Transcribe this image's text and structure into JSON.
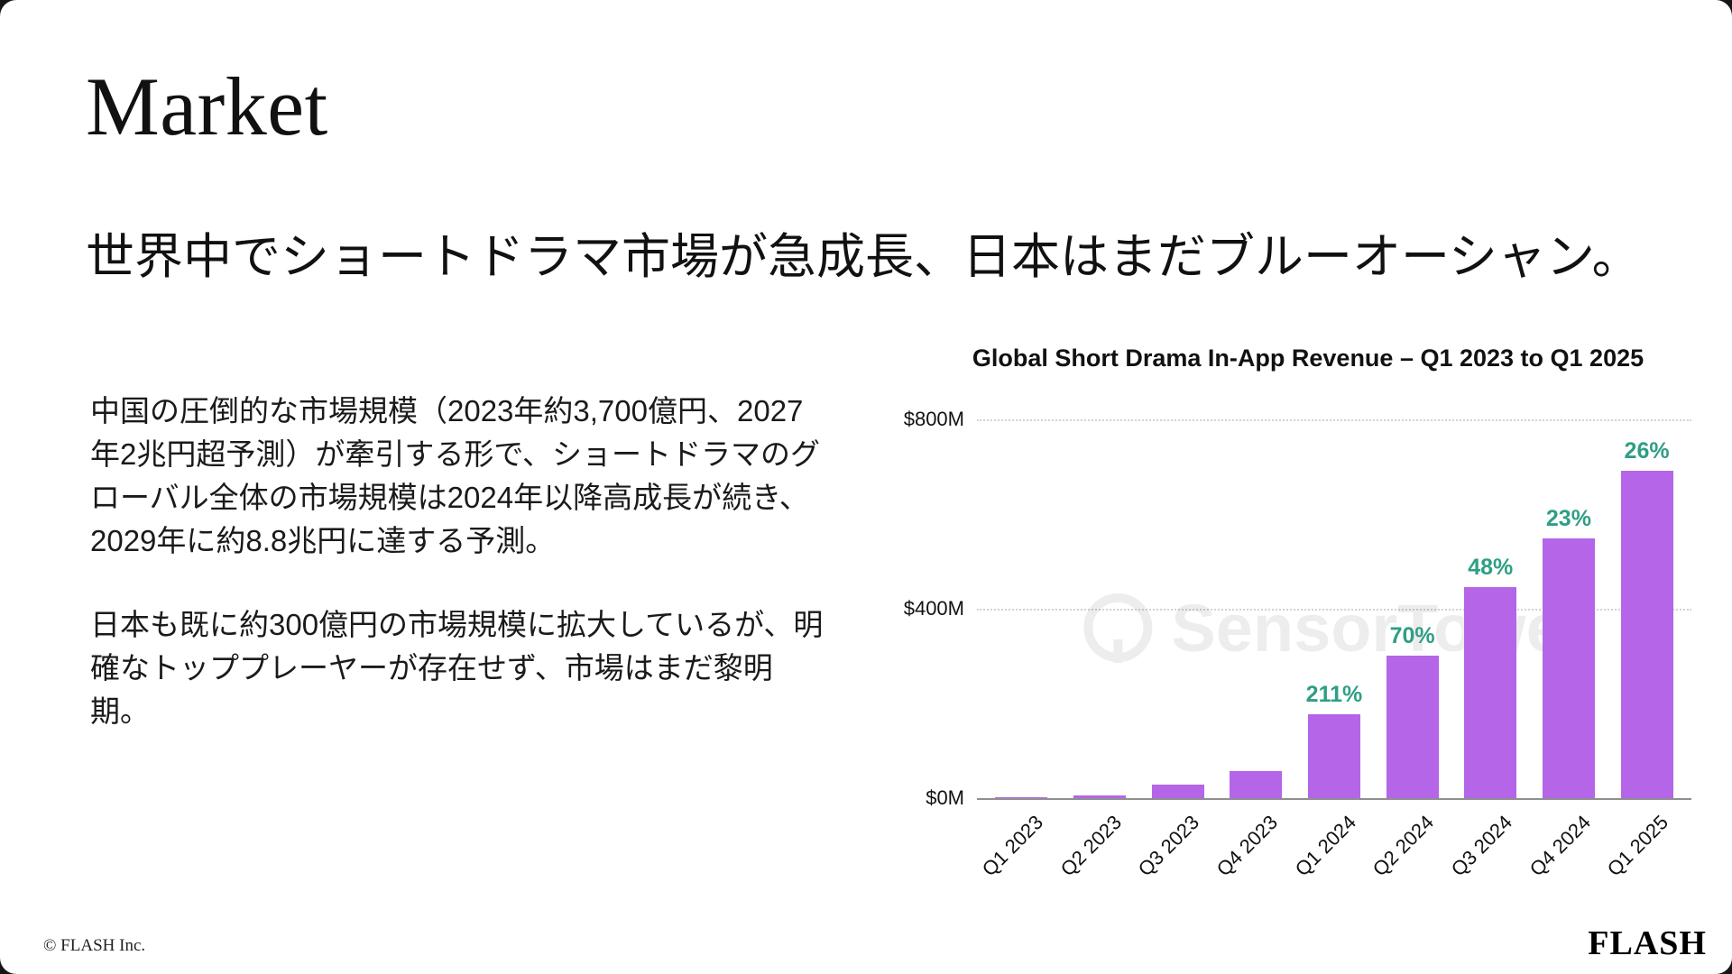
{
  "slide": {
    "title": "Market",
    "subtitle": "世界中でショートドラマ市場が急成長、日本はまだブルーオーシャン。",
    "body_paragraph_1": "中国の圧倒的な市場規模（2023年約3,700億円、2027年2兆円超予測）が牽引する形で、ショートドラマのグローバル全体の市場規模は2024年以降高成長が続き、2029年に約8.8兆円に達する予測。",
    "body_paragraph_2": "日本も既に約300億円の市場規模に拡大しているが、明確なトッププレーヤーが存在せず、市場はまだ黎明期。",
    "footer_copyright": "© FLASH Inc.",
    "footer_logo": "FLASH"
  },
  "chart_data": {
    "type": "bar",
    "title": "Global Short Drama In-App Revenue – Q1 2023 to Q1 2025",
    "categories": [
      "Q1 2023",
      "Q2 2023",
      "Q3 2023",
      "Q4 2023",
      "Q1 2024",
      "Q2 2024",
      "Q3 2024",
      "Q4 2024",
      "Q1 2025"
    ],
    "values": [
      1,
      5,
      28,
      57,
      177,
      301,
      446,
      548,
      691
    ],
    "unit": "$M",
    "growth_labels": [
      "",
      "",
      "",
      "",
      "211%",
      "70%",
      "48%",
      "23%",
      "26%"
    ],
    "y_ticks": [
      "$0M",
      "$400M",
      "$800M"
    ],
    "ylim": [
      0,
      800
    ],
    "grid": "dotted horizontal at $400M and $800M",
    "legend": "none",
    "bar_color": "#b565e8",
    "growth_label_color": "#2f9e86",
    "watermark": "SensorTower"
  }
}
